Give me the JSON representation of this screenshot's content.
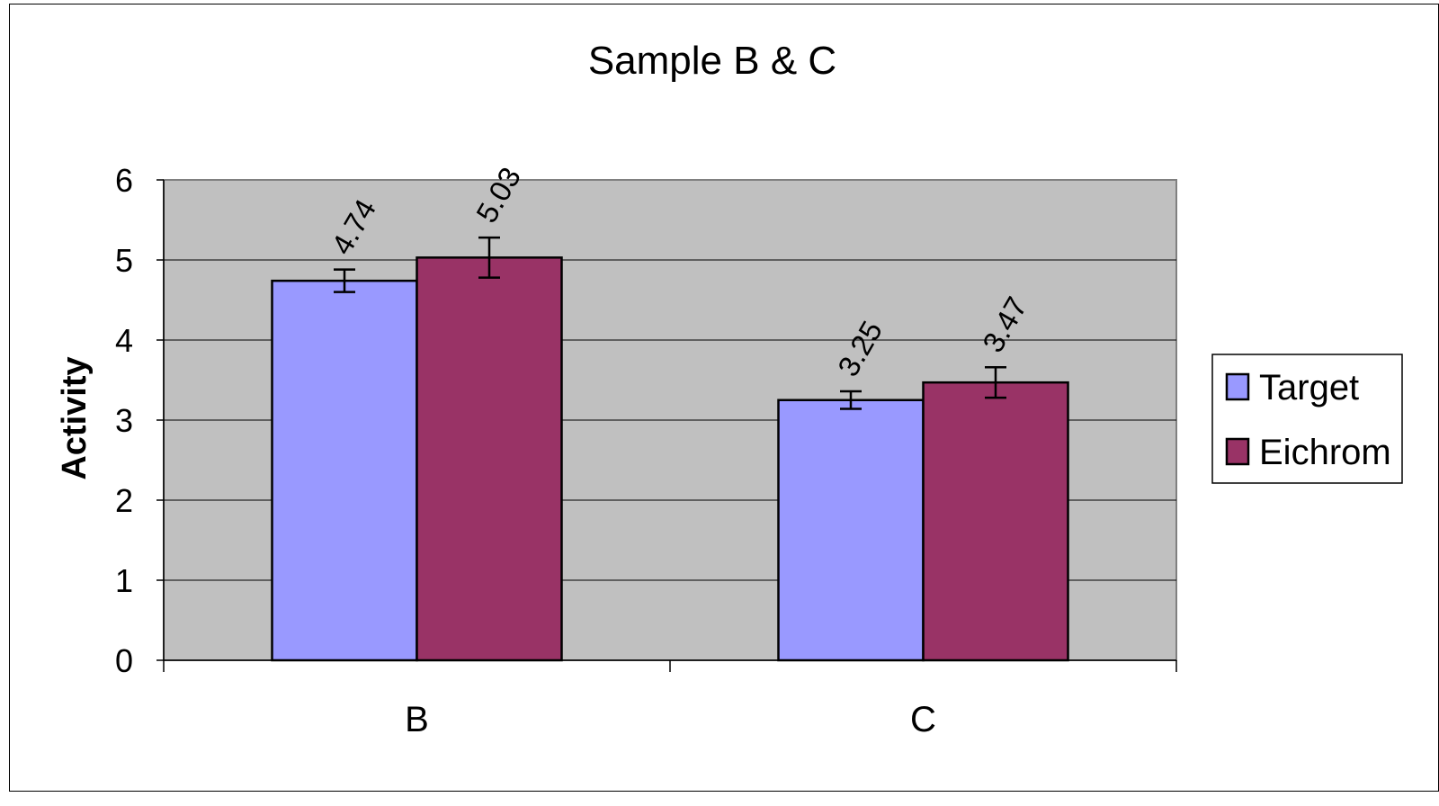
{
  "chart_data": {
    "type": "bar",
    "title": "Sample B & C",
    "xlabel": "",
    "ylabel": "Activity",
    "ylim": [
      0,
      6
    ],
    "yticks": [
      0,
      1,
      2,
      3,
      4,
      5,
      6
    ],
    "categories": [
      "B",
      "C"
    ],
    "series": [
      {
        "name": "Target",
        "color": "#9999ff",
        "values": [
          4.74,
          3.25
        ],
        "errors": [
          0.14,
          0.11
        ],
        "labels": [
          "4.74",
          "3.25"
        ]
      },
      {
        "name": "Eichrom",
        "color": "#993366",
        "values": [
          5.03,
          3.47
        ],
        "errors": [
          0.25,
          0.19
        ],
        "labels": [
          "5.03",
          "3.47"
        ]
      }
    ],
    "plot_background": "#c0c0c0",
    "grid": true,
    "legend_position": "right"
  }
}
